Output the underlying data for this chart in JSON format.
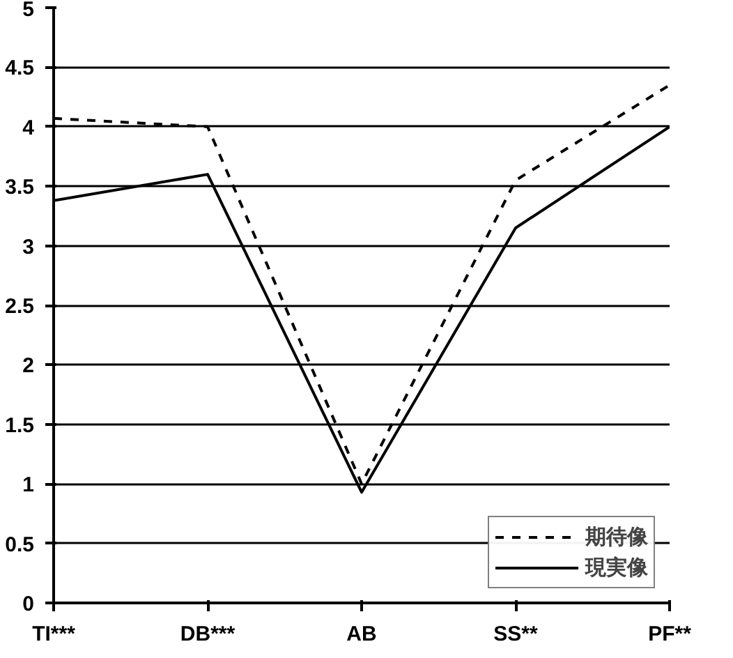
{
  "chart_data": {
    "type": "line",
    "categories": [
      "TI***",
      "DB***",
      "AB",
      "SS**",
      "PF**"
    ],
    "series": [
      {
        "name": "期待像",
        "color": "#000000",
        "line_style": "dashed",
        "values": [
          4.07,
          4.0,
          1.0,
          3.55,
          4.35
        ]
      },
      {
        "name": "現実像",
        "color": "#000000",
        "line_style": "solid",
        "values": [
          3.38,
          3.6,
          0.93,
          3.15,
          4.0
        ]
      }
    ],
    "ylim": [
      0,
      5
    ],
    "yticks": [
      0,
      0.5,
      1,
      1.5,
      2,
      2.5,
      3,
      3.5,
      4,
      4.5,
      5
    ],
    "grid": "y",
    "legend": "bottom right",
    "marker": "none"
  }
}
